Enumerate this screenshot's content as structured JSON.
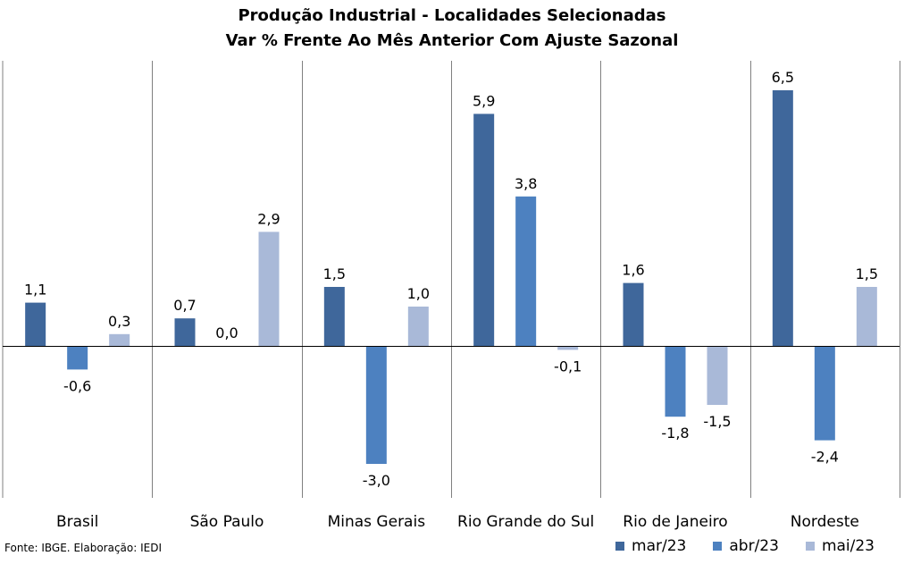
{
  "chart_data": {
    "type": "bar",
    "title": "Produção Industrial - Localidades Selecionadas",
    "subtitle": "Var % Frente Ao Mês Anterior Com Ajuste Sazonal",
    "categories": [
      "Brasil",
      "São Paulo",
      "Minas Gerais",
      "Rio Grande do Sul",
      "Rio de Janeiro",
      "Nordeste"
    ],
    "series": [
      {
        "name": "mar/23",
        "color": "#3f679b",
        "values": [
          1.1,
          0.7,
          1.5,
          5.9,
          1.6,
          6.5
        ],
        "labels": [
          "1,1",
          "0,7",
          "1,5",
          "5,9",
          "1,6",
          "6,5"
        ]
      },
      {
        "name": "abr/23",
        "color": "#4d81c0",
        "values": [
          -0.6,
          0.0,
          -3.0,
          3.8,
          -1.8,
          -2.4
        ],
        "labels": [
          "-0,6",
          "0,0",
          "-3,0",
          "3,8",
          "-1,8",
          "-2,4"
        ]
      },
      {
        "name": "mai/23",
        "color": "#a9b9d8",
        "values": [
          0.3,
          2.9,
          1.0,
          -0.1,
          -1.5,
          1.5
        ],
        "labels": [
          "0,3",
          "2,9",
          "1,0",
          "-0,1",
          "-1,5",
          "1,5"
        ]
      }
    ],
    "ylim": [
      -3.6,
      7.2
    ],
    "grid": false,
    "legend_position": "bottom-right"
  },
  "footer": {
    "source": "Fonte: IBGE. Elaboração: IEDI"
  }
}
